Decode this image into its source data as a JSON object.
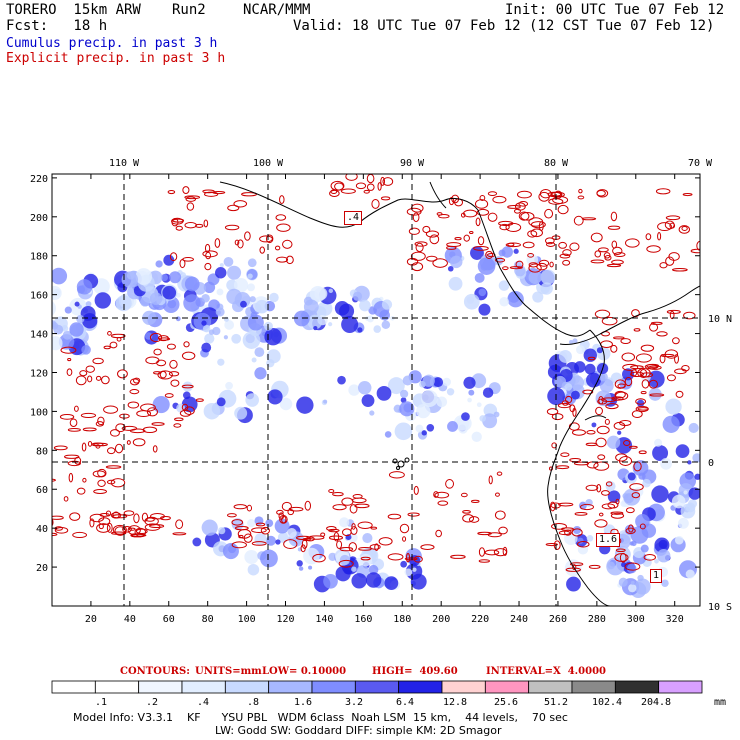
{
  "header": {
    "model": "TORERO  15km ARW",
    "run": "Run2",
    "org": "NCAR/MMM",
    "init": "Init: 00 UTC Tue 07 Feb 12",
    "fcst": "Fcst:   18 h",
    "valid": "Valid: 18 UTC Tue 07 Feb 12 (12 CST Tue 07 Feb 12)",
    "field1": "Cumulus precip. in past 3 h",
    "field2": "Explicit precip. in past 3 h"
  },
  "colors": {
    "cumulus": "#0000cc",
    "explicit": "#cc0000"
  },
  "top_axis": [
    "110 W",
    "100 W",
    "90 W",
    "80 W",
    "70 W"
  ],
  "right_axis": [
    "10 N",
    "0",
    "10 S"
  ],
  "y_ticks": [
    "220",
    "200",
    "180",
    "160",
    "140",
    "120",
    "100",
    "80",
    "60",
    "40",
    "20"
  ],
  "x_ticks": [
    "20",
    "40",
    "60",
    "80",
    "100",
    "120",
    "140",
    "160",
    "180",
    "200",
    "220",
    "240",
    "260",
    "280",
    "300",
    "320"
  ],
  "map_labels": {
    "l1": ".4",
    "l2": "1.6",
    "l3": "1"
  },
  "contour_info": {
    "contours": "CONTOURS:",
    "units": "UNITS=mm",
    "low": "LOW= 0.10000",
    "high": "HIGH=  409.60",
    "interval": "INTERVAL=X  4.0000"
  },
  "colorbar": {
    "labels": [
      ".1",
      ".2",
      ".4",
      ".8",
      "1.6",
      "3.2",
      "6.4",
      "12.8",
      "25.6",
      "51.2",
      "102.4",
      "204.8"
    ],
    "units": "mm",
    "colors": [
      "#ffffff",
      "#ffffff",
      "#f0f6ff",
      "#e2eeff",
      "#c8daff",
      "#a7b8ff",
      "#7f8dff",
      "#5a5af0",
      "#2222e6",
      "#ffd2d2",
      "#ff96c0",
      "#c0c0c0",
      "#8a8a8a",
      "#303030",
      "#d8a0ff"
    ]
  },
  "model_info": {
    "line1": "Model Info: V3.3.1    KF      YSU PBL   WDM 6class  Noah LSM  15 km,    44 levels,    70 sec",
    "line2": "LW: Godd SW: Goddard DIFF: simple KM: 2D Smagor"
  }
}
